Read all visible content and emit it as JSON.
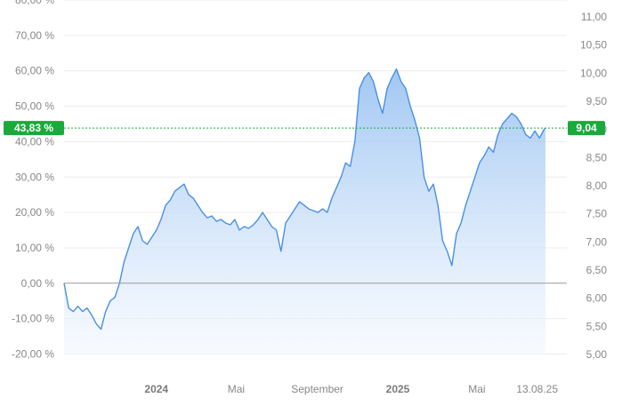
{
  "chart_data": {
    "type": "area",
    "title": "",
    "left_axis": {
      "unit": "percent",
      "ylim": [
        -20,
        80
      ],
      "ticks": [
        -20,
        -10,
        0,
        10,
        20,
        30,
        40,
        50,
        60,
        70,
        80
      ],
      "tick_labels": [
        "-20,00 %",
        "-10,00 %",
        "0,00 %",
        "10,00 %",
        "20,00 %",
        "30,00 %",
        "40,00 %",
        "50,00 %",
        "60,00 %",
        "70,00 %",
        "80,00 %"
      ]
    },
    "right_axis": {
      "ylim": [
        5.0,
        11.0
      ],
      "ticks": [
        5.0,
        5.5,
        6.0,
        6.5,
        7.0,
        7.5,
        8.0,
        8.5,
        9.0,
        9.5,
        10.0,
        10.5,
        11.0
      ],
      "tick_labels": [
        "5,00",
        "5,50",
        "6,00",
        "6,50",
        "7,00",
        "7,50",
        "8,00",
        "8,50",
        "9,00",
        "9,50",
        "10,00",
        "10,50",
        "11,00"
      ]
    },
    "x_axis": {
      "range": [
        "2023-08-14",
        "2025-08-13"
      ],
      "ticks": [
        {
          "date": "2024-01-01",
          "label": "2024",
          "bold": true
        },
        {
          "date": "2024-05-01",
          "label": "Mai",
          "bold": false
        },
        {
          "date": "2024-09-01",
          "label": "September",
          "bold": false
        },
        {
          "date": "2025-01-01",
          "label": "2025",
          "bold": true
        },
        {
          "date": "2025-05-01",
          "label": "Mai",
          "bold": false
        },
        {
          "date": "2025-08-13",
          "label": "13.08.25",
          "bold": false
        }
      ]
    },
    "grid": true,
    "baseline_percent": 0,
    "current": {
      "percent_label": "43,83 %",
      "price_label": "9,04",
      "percent": 43.83
    },
    "colors": {
      "line": "#4a90e2",
      "fill_top": "#9cc4f2",
      "fill_bottom": "#f2f7fe",
      "badge": "#1aaa3c",
      "reference_line": "#1aaa3c",
      "baseline": "#999999",
      "grid": "#ececec"
    },
    "series": [
      {
        "x": [
          "2023-08-14",
          "2023-08-21",
          "2023-08-28",
          "2023-09-04",
          "2023-09-11",
          "2023-09-18",
          "2023-09-25",
          "2023-10-02",
          "2023-10-09",
          "2023-10-16",
          "2023-10-23",
          "2023-10-30",
          "2023-11-06",
          "2023-11-13",
          "2023-11-20",
          "2023-11-27",
          "2023-12-04",
          "2023-12-11",
          "2023-12-18",
          "2023-12-25",
          "2024-01-01",
          "2024-01-08",
          "2024-01-15",
          "2024-01-22",
          "2024-01-29",
          "2024-02-05",
          "2024-02-12",
          "2024-02-19",
          "2024-02-26",
          "2024-03-04",
          "2024-03-11",
          "2024-03-18",
          "2024-03-25",
          "2024-04-01",
          "2024-04-08",
          "2024-04-15",
          "2024-04-22",
          "2024-04-29",
          "2024-05-06",
          "2024-05-13",
          "2024-05-20",
          "2024-05-27",
          "2024-06-03",
          "2024-06-10",
          "2024-06-17",
          "2024-06-24",
          "2024-07-01",
          "2024-07-08",
          "2024-07-15",
          "2024-07-22",
          "2024-07-29",
          "2024-08-05",
          "2024-08-12",
          "2024-08-19",
          "2024-08-26",
          "2024-09-02",
          "2024-09-09",
          "2024-09-16",
          "2024-09-23",
          "2024-09-30",
          "2024-10-07",
          "2024-10-14",
          "2024-10-21",
          "2024-10-28",
          "2024-11-04",
          "2024-11-11",
          "2024-11-18",
          "2024-11-25",
          "2024-12-02",
          "2024-12-09",
          "2024-12-16",
          "2024-12-23",
          "2024-12-30",
          "2025-01-06",
          "2025-01-13",
          "2025-01-20",
          "2025-01-27",
          "2025-02-03",
          "2025-02-10",
          "2025-02-17",
          "2025-02-24",
          "2025-03-03",
          "2025-03-10",
          "2025-03-17",
          "2025-03-24",
          "2025-03-31",
          "2025-04-07",
          "2025-04-14",
          "2025-04-21",
          "2025-04-28",
          "2025-05-05",
          "2025-05-12",
          "2025-05-19",
          "2025-05-26",
          "2025-06-02",
          "2025-06-09",
          "2025-06-16",
          "2025-06-23",
          "2025-06-30",
          "2025-07-07",
          "2025-07-14",
          "2025-07-21",
          "2025-07-28",
          "2025-08-04",
          "2025-08-11",
          "2025-08-13"
        ],
        "y": [
          0.0,
          -7.0,
          -8.0,
          -6.5,
          -8.0,
          -7.0,
          -9.0,
          -11.5,
          -13.0,
          -8.0,
          -5.0,
          -4.0,
          0.0,
          6.0,
          10.0,
          14.0,
          16.0,
          12.0,
          11.0,
          13.0,
          15.0,
          18.0,
          22.0,
          23.5,
          26.0,
          27.0,
          28.0,
          25.0,
          24.0,
          22.0,
          20.0,
          18.5,
          19.0,
          17.5,
          18.0,
          17.0,
          16.5,
          18.0,
          15.0,
          16.0,
          15.5,
          16.5,
          18.0,
          20.0,
          18.0,
          16.0,
          15.0,
          9.0,
          17.0,
          19.0,
          21.0,
          23.0,
          22.0,
          21.0,
          20.5,
          20.0,
          21.0,
          20.0,
          24.0,
          27.0,
          30.0,
          34.0,
          33.0,
          40.0,
          55.0,
          58.0,
          59.5,
          57.0,
          52.0,
          48.0,
          55.0,
          58.0,
          60.5,
          57.0,
          55.0,
          50.0,
          46.0,
          41.0,
          30.0,
          26.0,
          28.0,
          22.0,
          12.0,
          9.0,
          5.0,
          14.0,
          17.0,
          22.0,
          26.0,
          30.0,
          34.0,
          36.0,
          38.5,
          37.0,
          42.0,
          45.0,
          46.5,
          48.0,
          47.0,
          45.0,
          42.0,
          41.0,
          43.0,
          41.0,
          43.5,
          43.83
        ]
      }
    ]
  }
}
